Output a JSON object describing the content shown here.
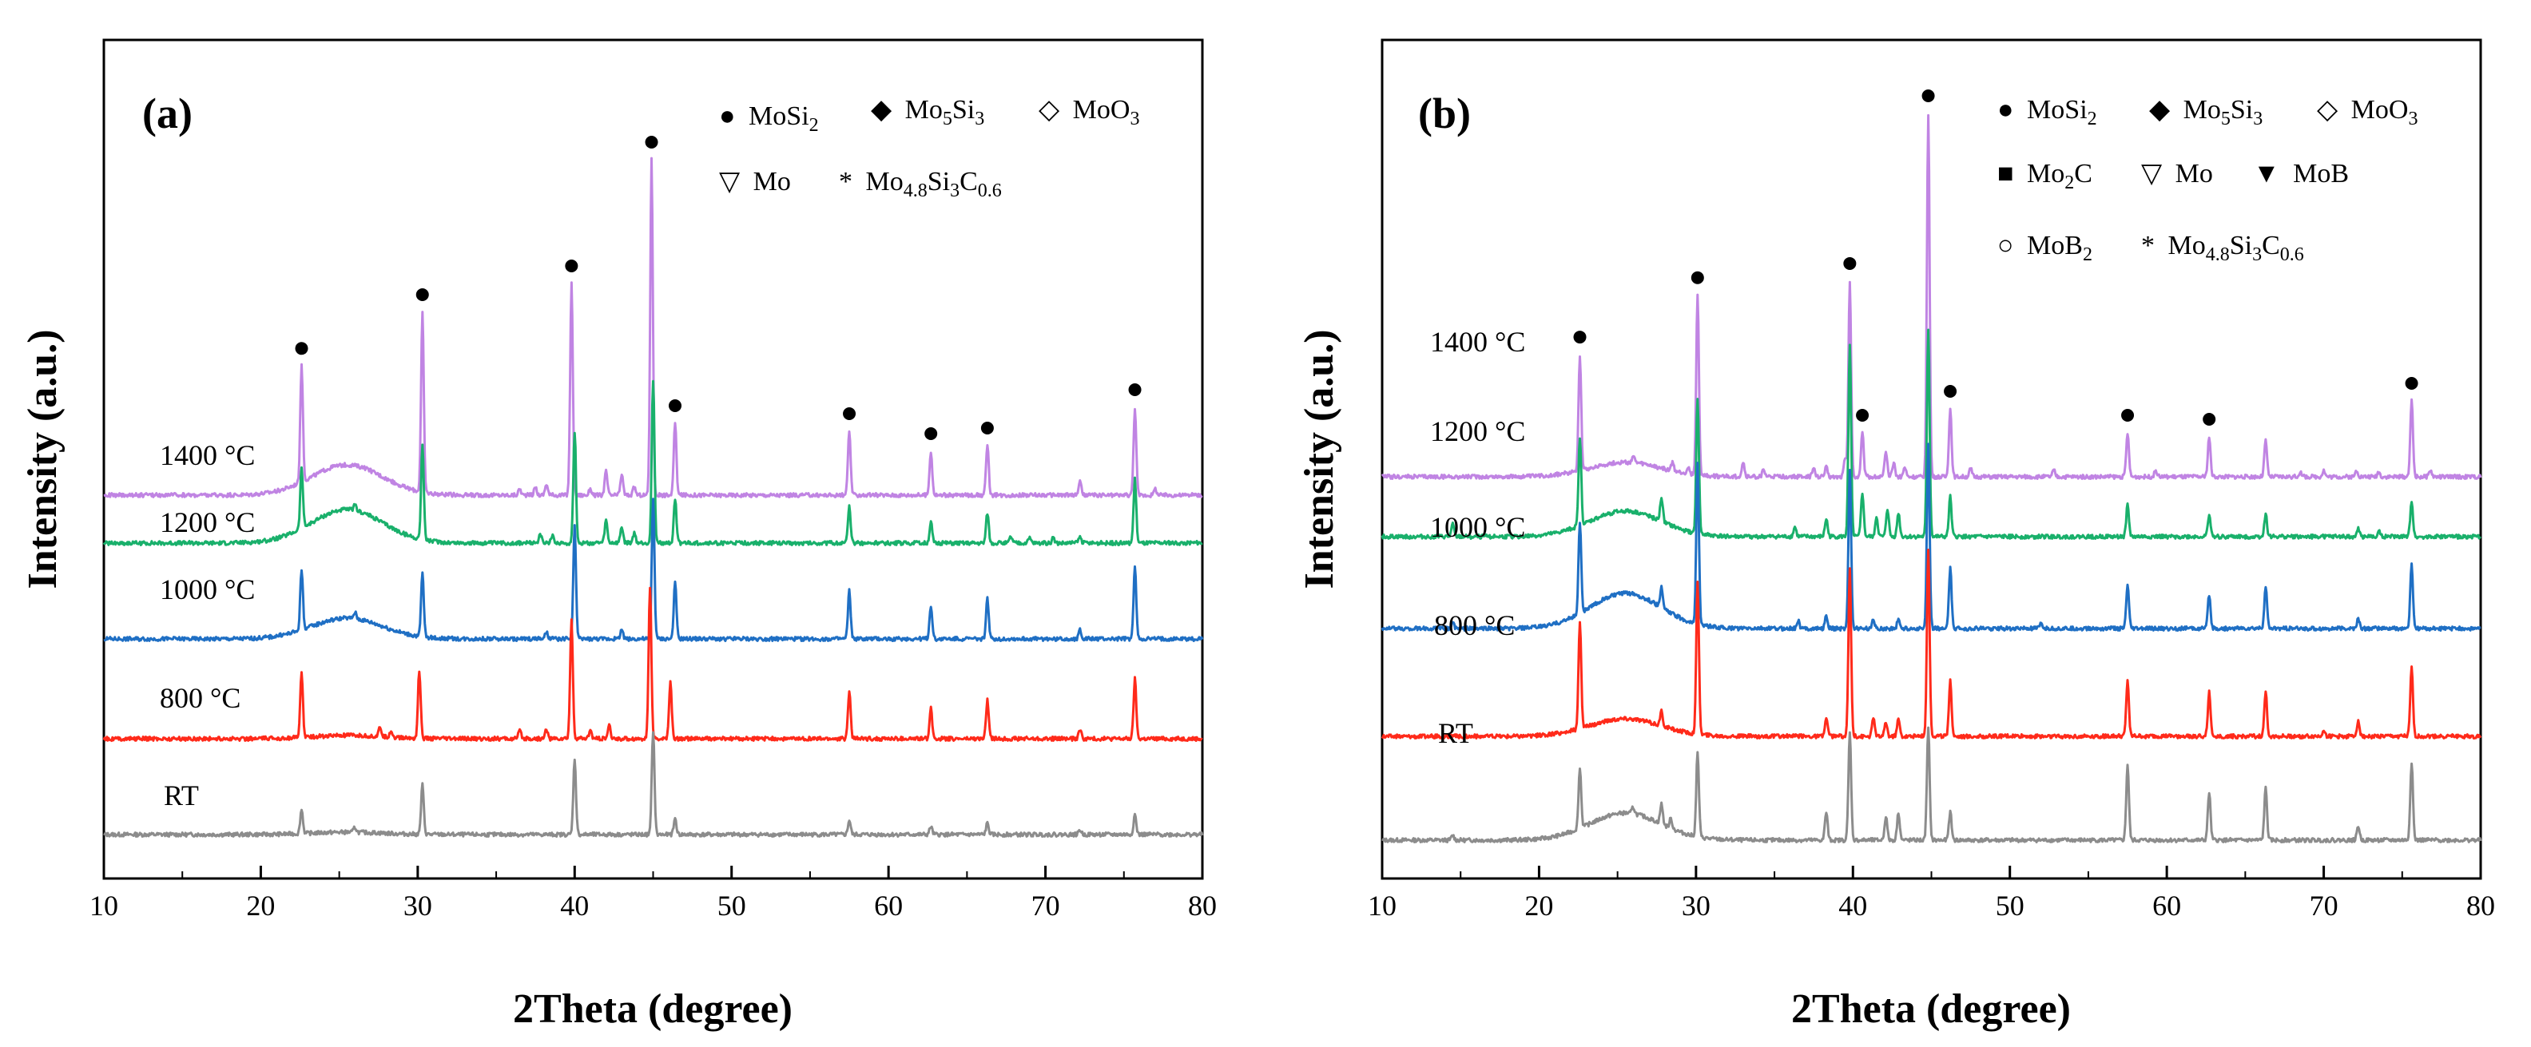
{
  "colors": {
    "RT": "#8c8c8c",
    "800 °C": "#ff2a1a",
    "1000 °C": "#1f6fc4",
    "1200 °C": "#19b06b",
    "1400 °C": "#c084e3",
    "axis": "#000000"
  },
  "chart_data": [
    {
      "type": "line",
      "panel": "(a)",
      "xlabel": "2Theta (degree)",
      "ylabel": "Intensity (a.u.)",
      "xlim": [
        10,
        80
      ],
      "xticks": [
        10,
        20,
        30,
        40,
        50,
        60,
        70,
        80
      ],
      "yticks": false,
      "series": [
        {
          "name": "RT",
          "baseline": 0,
          "bump_height": 3,
          "peaks": [
            [
              22.6,
              30
            ],
            [
              26.0,
              6
            ],
            [
              30.3,
              62
            ],
            [
              40.0,
              95
            ],
            [
              45.0,
              130
            ],
            [
              46.4,
              20
            ],
            [
              57.5,
              18
            ],
            [
              62.7,
              10
            ],
            [
              66.3,
              14
            ],
            [
              72.2,
              6
            ],
            [
              75.7,
              25
            ]
          ]
        },
        {
          "name": "800 °C",
          "baseline": 120,
          "bump_height": 4,
          "peaks": [
            [
              22.6,
              80
            ],
            [
              27.6,
              12
            ],
            [
              28.3,
              8
            ],
            [
              30.1,
              85
            ],
            [
              36.5,
              10
            ],
            [
              38.2,
              12
            ],
            [
              39.8,
              150
            ],
            [
              41.0,
              10
            ],
            [
              42.2,
              16
            ],
            [
              44.8,
              190
            ],
            [
              46.1,
              70
            ],
            [
              57.5,
              60
            ],
            [
              62.7,
              38
            ],
            [
              66.3,
              48
            ],
            [
              72.2,
              12
            ],
            [
              75.7,
              75
            ]
          ]
        },
        {
          "name": "1000 °C",
          "baseline": 245,
          "bump_height": 26,
          "peaks": [
            [
              22.6,
              75
            ],
            [
              26.0,
              8
            ],
            [
              30.3,
              80
            ],
            [
              38.2,
              8
            ],
            [
              40.0,
              140
            ],
            [
              43.0,
              12
            ],
            [
              45.0,
              175
            ],
            [
              46.4,
              70
            ],
            [
              57.5,
              60
            ],
            [
              62.7,
              42
            ],
            [
              66.3,
              50
            ],
            [
              72.2,
              12
            ],
            [
              75.7,
              90
            ]
          ]
        },
        {
          "name": "1200 °C",
          "baseline": 365,
          "bump_height": 42,
          "peaks": [
            [
              22.6,
              75
            ],
            [
              26.0,
              6
            ],
            [
              30.3,
              120
            ],
            [
              37.8,
              12
            ],
            [
              38.6,
              10
            ],
            [
              40.0,
              140
            ],
            [
              42.0,
              28
            ],
            [
              43.0,
              20
            ],
            [
              43.8,
              12
            ],
            [
              45.0,
              205
            ],
            [
              46.4,
              55
            ],
            [
              57.5,
              45
            ],
            [
              62.7,
              26
            ],
            [
              66.3,
              38
            ],
            [
              67.8,
              8
            ],
            [
              69.0,
              6
            ],
            [
              70.5,
              6
            ],
            [
              72.2,
              8
            ],
            [
              75.7,
              80
            ]
          ]
        },
        {
          "name": "1400 °C",
          "baseline": 425,
          "bump_height": 38,
          "peaks": [
            [
              22.6,
              145
            ],
            [
              30.3,
              225
            ],
            [
              36.5,
              8
            ],
            [
              37.5,
              10
            ],
            [
              38.2,
              14
            ],
            [
              39.8,
              265
            ],
            [
              41.0,
              8
            ],
            [
              42.0,
              30
            ],
            [
              43.0,
              26
            ],
            [
              43.8,
              10
            ],
            [
              44.9,
              420
            ],
            [
              46.4,
              90
            ],
            [
              57.5,
              80
            ],
            [
              62.7,
              55
            ],
            [
              66.3,
              62
            ],
            [
              72.2,
              18
            ],
            [
              75.7,
              110
            ],
            [
              77.0,
              8
            ]
          ]
        }
      ],
      "legend": [
        "MoSi2",
        "Mo5Si3",
        "MoO3",
        "Mo",
        "Mo4.8Si3C0.6"
      ]
    },
    {
      "type": "line",
      "panel": "(b)",
      "xlabel": "2Theta (degree)",
      "ylabel": "Intensity (a.u.)",
      "xlim": [
        10,
        80
      ],
      "xticks": [
        10,
        20,
        30,
        40,
        50,
        60,
        70,
        80
      ],
      "yticks": false,
      "series": [
        {
          "name": "RT",
          "baseline": 0,
          "bump_height": 34,
          "peaks": [
            [
              14.5,
              6
            ],
            [
              22.6,
              75
            ],
            [
              26.0,
              8
            ],
            [
              27.8,
              25
            ],
            [
              28.4,
              12
            ],
            [
              30.1,
              105
            ],
            [
              38.3,
              35
            ],
            [
              39.8,
              135
            ],
            [
              42.1,
              30
            ],
            [
              42.9,
              35
            ],
            [
              44.8,
              140
            ],
            [
              46.2,
              35
            ],
            [
              57.5,
              95
            ],
            [
              62.7,
              60
            ],
            [
              66.3,
              65
            ],
            [
              72.2,
              18
            ],
            [
              75.6,
              98
            ]
          ]
        },
        {
          "name": "800 °C",
          "baseline": 130,
          "bump_height": 22,
          "peaks": [
            [
              22.6,
              135
            ],
            [
              27.8,
              18
            ],
            [
              30.1,
              190
            ],
            [
              38.3,
              22
            ],
            [
              39.8,
              210
            ],
            [
              41.3,
              22
            ],
            [
              42.1,
              18
            ],
            [
              42.9,
              22
            ],
            [
              44.8,
              235
            ],
            [
              46.2,
              70
            ],
            [
              57.5,
              70
            ],
            [
              62.7,
              55
            ],
            [
              66.3,
              55
            ],
            [
              70.0,
              8
            ],
            [
              72.2,
              20
            ],
            [
              75.6,
              85
            ]
          ]
        },
        {
          "name": "1000 °C",
          "baseline": 265,
          "bump_height": 44,
          "peaks": [
            [
              14.5,
              8
            ],
            [
              22.6,
              115
            ],
            [
              27.8,
              25
            ],
            [
              30.1,
              200
            ],
            [
              36.5,
              10
            ],
            [
              38.3,
              15
            ],
            [
              39.8,
              200
            ],
            [
              41.3,
              10
            ],
            [
              42.9,
              12
            ],
            [
              44.8,
              230
            ],
            [
              46.2,
              75
            ],
            [
              52.0,
              6
            ],
            [
              57.5,
              55
            ],
            [
              62.7,
              42
            ],
            [
              66.3,
              52
            ],
            [
              72.2,
              12
            ],
            [
              75.6,
              80
            ]
          ]
        },
        {
          "name": "1200 °C",
          "baseline": 380,
          "bump_height": 32,
          "peaks": [
            [
              14.5,
              15
            ],
            [
              22.6,
              110
            ],
            [
              27.8,
              30
            ],
            [
              30.1,
              170
            ],
            [
              36.3,
              12
            ],
            [
              38.3,
              22
            ],
            [
              39.8,
              240
            ],
            [
              40.6,
              55
            ],
            [
              41.5,
              25
            ],
            [
              42.2,
              35
            ],
            [
              42.9,
              30
            ],
            [
              44.8,
              260
            ],
            [
              46.2,
              50
            ],
            [
              57.5,
              40
            ],
            [
              62.7,
              28
            ],
            [
              66.3,
              28
            ],
            [
              72.2,
              10
            ],
            [
              73.5,
              8
            ],
            [
              75.6,
              45
            ]
          ]
        },
        {
          "name": "1400 °C",
          "baseline": 455,
          "bump_height": 18,
          "peaks": [
            [
              22.6,
              145
            ],
            [
              26.0,
              8
            ],
            [
              28.5,
              10
            ],
            [
              29.5,
              8
            ],
            [
              30.1,
              225
            ],
            [
              33.0,
              18
            ],
            [
              34.3,
              8
            ],
            [
              37.5,
              10
            ],
            [
              38.3,
              12
            ],
            [
              39.5,
              22
            ],
            [
              39.8,
              245
            ],
            [
              40.6,
              55
            ],
            [
              42.1,
              30
            ],
            [
              42.6,
              18
            ],
            [
              43.3,
              12
            ],
            [
              44.8,
              455
            ],
            [
              46.2,
              85
            ],
            [
              47.5,
              10
            ],
            [
              52.8,
              8
            ],
            [
              57.5,
              55
            ],
            [
              59.3,
              8
            ],
            [
              62.7,
              50
            ],
            [
              66.3,
              45
            ],
            [
              68.5,
              6
            ],
            [
              70.0,
              8
            ],
            [
              72.1,
              8
            ],
            [
              73.5,
              6
            ],
            [
              75.6,
              95
            ],
            [
              76.8,
              8
            ]
          ]
        }
      ],
      "legend": [
        "MoSi2",
        "Mo5Si3",
        "MoO3",
        "Mo2C",
        "Mo",
        "MoB",
        "MoB2",
        "Mo4.8Si3C0.6"
      ]
    }
  ],
  "panels": {
    "a": {
      "label": "(a)",
      "temps": [
        "1400 °C",
        "1200 °C",
        "1000 °C",
        "800 °C",
        "RT"
      ],
      "legend_symbols": {
        "mosi2": "●",
        "mo5si3": "◆",
        "moo3": "◇",
        "mo": "▽",
        "star": "*"
      },
      "legend_text": {
        "mosi2": "MoSi",
        "mo5si3": "Mo",
        "moo3": "MoO",
        "mo": "Mo",
        "star": "Mo"
      }
    },
    "b": {
      "label": "(b)",
      "temps": [
        "1400 °C",
        "1200 °C",
        "1000 °C",
        "800 °C",
        "RT"
      ],
      "legend_symbols": {
        "mosi2": "●",
        "mo5si3": "◆",
        "moo3": "◇",
        "mo2c": "■",
        "mo": "▽",
        "mob": "▼",
        "mob2": "○",
        "star": "*"
      },
      "legend_text": {
        "mosi2": "MoSi",
        "mo5si3": "Mo",
        "moo3": "MoO",
        "mo2c": "Mo",
        "mo": "Mo",
        "mob": "MoB",
        "mob2": "MoB",
        "star": "Mo"
      }
    }
  },
  "subscripts": {
    "two": "2",
    "five": "5",
    "three": "3",
    "four8": "4.8",
    "c06": "0.6",
    "si": "Si",
    "c": "C"
  }
}
